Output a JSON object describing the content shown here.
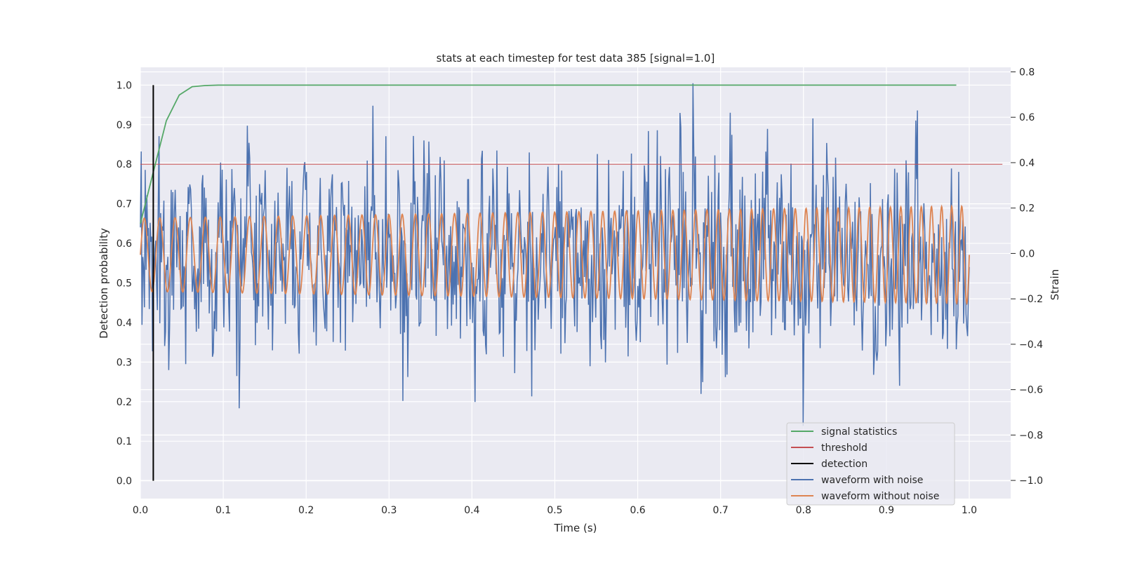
{
  "chart_data": {
    "type": "line",
    "title": "stats at each timestep for test data 385 [signal=1.0]",
    "xlabel": "Time (s)",
    "ylabel": "Detection probability",
    "y2label": "Strain",
    "xlim": [
      0.0,
      1.05
    ],
    "ylim": [
      -0.045,
      1.045
    ],
    "y2lim": [
      -1.08,
      0.82
    ],
    "xticks": [
      "0.0",
      "0.1",
      "0.2",
      "0.3",
      "0.4",
      "0.5",
      "0.6",
      "0.7",
      "0.8",
      "0.9",
      "1.0"
    ],
    "yticks": [
      "0.0",
      "0.1",
      "0.2",
      "0.3",
      "0.4",
      "0.5",
      "0.6",
      "0.7",
      "0.8",
      "0.9",
      "1.0"
    ],
    "y2ticks": [
      "−1.0",
      "−0.8",
      "−0.6",
      "−0.4",
      "−0.2",
      "0.0",
      "0.2",
      "0.4",
      "0.6",
      "0.8"
    ],
    "grid": true,
    "legend_position": "bottom-right",
    "colors": {
      "background": "#eaeaf2",
      "signal_statistics": "#55a868",
      "threshold": "#c44e52",
      "detection": "#000000",
      "waveform_with_noise": "#4c72b0",
      "waveform_without_noise": "#dd8452"
    },
    "series": [
      {
        "name": "signal statistics",
        "axis": "left",
        "x": [
          0.0,
          0.0156,
          0.0313,
          0.0469,
          0.0625,
          0.0781,
          0.0938,
          0.9844
        ],
        "y": [
          0.65,
          0.78,
          0.91,
          0.975,
          0.996,
          0.999,
          1.0,
          1.0
        ]
      },
      {
        "name": "threshold",
        "axis": "left",
        "x": [
          0.0,
          1.04
        ],
        "y": [
          0.8,
          0.8
        ]
      },
      {
        "name": "detection",
        "axis": "left",
        "x": [
          0.0156,
          0.0156
        ],
        "y": [
          0.0,
          1.0
        ]
      },
      {
        "name": "waveform with noise",
        "axis": "right",
        "generated": "noisy",
        "duration": 1.0,
        "points": 1024,
        "amplitude_range": [
          -0.76,
          0.75
        ],
        "highlights": [
          {
            "x": 0.317,
            "y": -0.65
          },
          {
            "x": 0.472,
            "y": -0.63
          },
          {
            "x": 0.667,
            "y": 0.75
          },
          {
            "x": 0.8,
            "y": -0.76
          },
          {
            "x": 0.937,
            "y": 0.63
          }
        ]
      },
      {
        "name": "waveform without noise",
        "axis": "right",
        "generated": "chirp",
        "duration": 1.0,
        "amplitude_range": [
          -0.23,
          0.2
        ],
        "cycles": 68
      }
    ]
  }
}
